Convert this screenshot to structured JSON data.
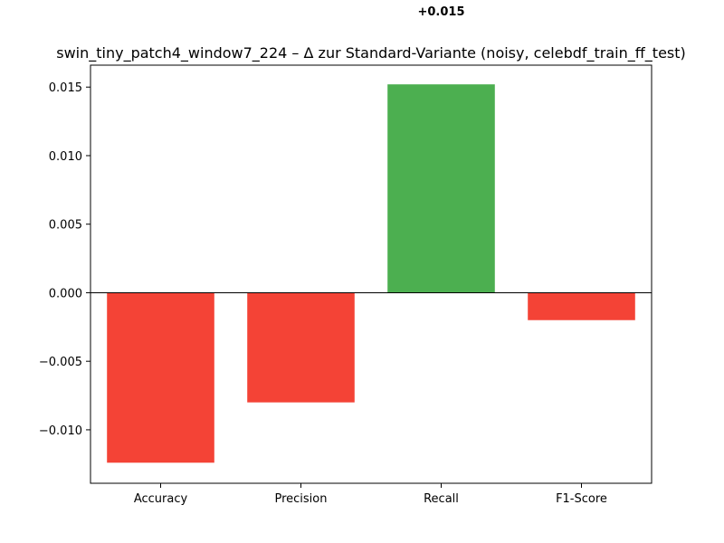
{
  "chart_data": {
    "type": "bar",
    "title": "swin_tiny_patch4_window7_224 – Δ zur Standard-Variante (noisy, celebdf_train_ff_test)",
    "xlabel": "",
    "ylabel": "",
    "categories": [
      "Accuracy",
      "Precision",
      "Recall",
      "F1-Score"
    ],
    "values": [
      -0.0124,
      -0.008,
      0.0152,
      -0.002
    ],
    "colors": [
      "#f44336",
      "#f44336",
      "#4caf50",
      "#f44336"
    ],
    "data_labels": [
      null,
      null,
      "+0.015",
      null
    ],
    "ylim": [
      -0.0139,
      0.0166
    ],
    "yticks": [
      0.015,
      0.01,
      0.005,
      0.0,
      -0.005,
      -0.01
    ],
    "ytick_labels": [
      "0.015",
      "0.010",
      "0.005",
      "0.000",
      "−0.005",
      "−0.010"
    ],
    "baseline": 0,
    "grid": false,
    "legend": "none"
  }
}
